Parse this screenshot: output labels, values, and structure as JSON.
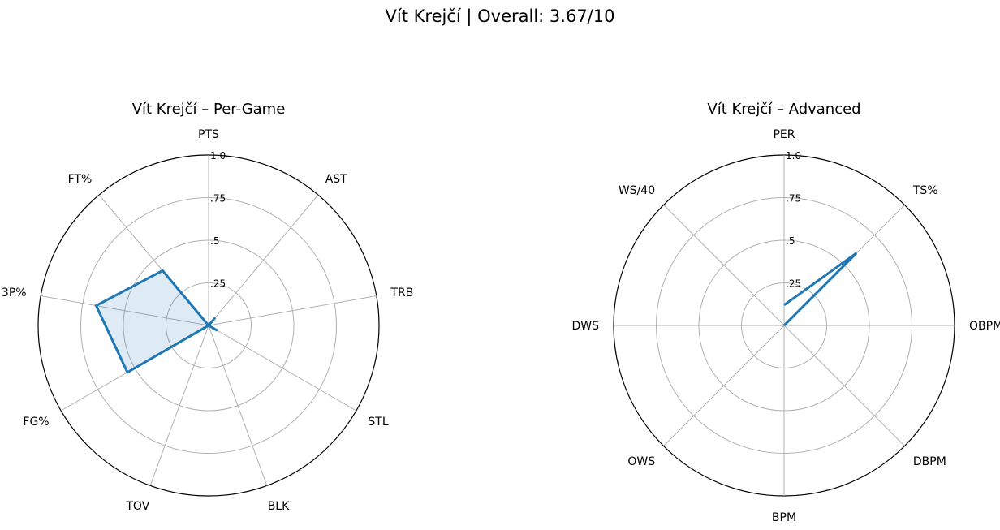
{
  "figure": {
    "suptitle": "Vít Krejčí | Overall: 3.67/10"
  },
  "chart_data": [
    {
      "type": "radar",
      "title": "Vít Krejčí – Per-Game",
      "axes": [
        "PTS",
        "AST",
        "TRB",
        "STL",
        "BLK",
        "TOV",
        "FG%",
        "3P%",
        "FT%"
      ],
      "values": [
        0.0,
        0.06,
        0.0,
        0.06,
        0.0,
        0.0,
        0.55,
        0.67,
        0.42
      ],
      "rmax": 1.0,
      "r_ticks": [
        0.25,
        0.5,
        0.75,
        1.0
      ],
      "r_tick_labels": [
        ".25",
        ".5",
        ".75",
        "1.0"
      ],
      "fill": true,
      "grid": true,
      "colors": {
        "line": "#1f77b4",
        "fill": "#1f77b4"
      }
    },
    {
      "type": "radar",
      "title": "Vít Krejčí – Advanced",
      "axes": [
        "PER",
        "TS%",
        "OBPM",
        "DBPM",
        "BPM",
        "OWS",
        "DWS",
        "WS/40"
      ],
      "values": [
        0.12,
        0.6,
        0.0,
        0.0,
        0.0,
        0.0,
        0.0,
        0.0
      ],
      "rmax": 1.0,
      "r_ticks": [
        0.25,
        0.5,
        0.75,
        1.0
      ],
      "r_tick_labels": [
        ".25",
        ".5",
        ".75",
        "1.0"
      ],
      "fill": false,
      "grid": true,
      "colors": {
        "line": "#1f77b4",
        "fill": "#1f77b4"
      }
    }
  ]
}
